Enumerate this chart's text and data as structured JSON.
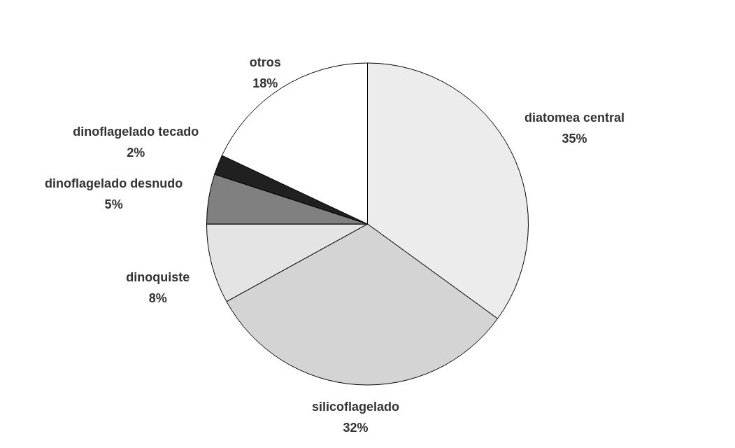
{
  "chart_data": {
    "type": "pie",
    "categories": [
      "diatomea central",
      "silicoflagelado",
      "dinoquiste",
      "dinoflagelado desnudo",
      "dinoflagelado tecado",
      "otros"
    ],
    "values": [
      35,
      32,
      8,
      5,
      2,
      18
    ],
    "value_labels": [
      "35%",
      "32%",
      "8%",
      "5%",
      "2%",
      "18%"
    ],
    "colors": [
      "#ececec",
      "#d4d4d4",
      "#e4e4e4",
      "#808080",
      "#202020",
      "#ffffff"
    ]
  }
}
